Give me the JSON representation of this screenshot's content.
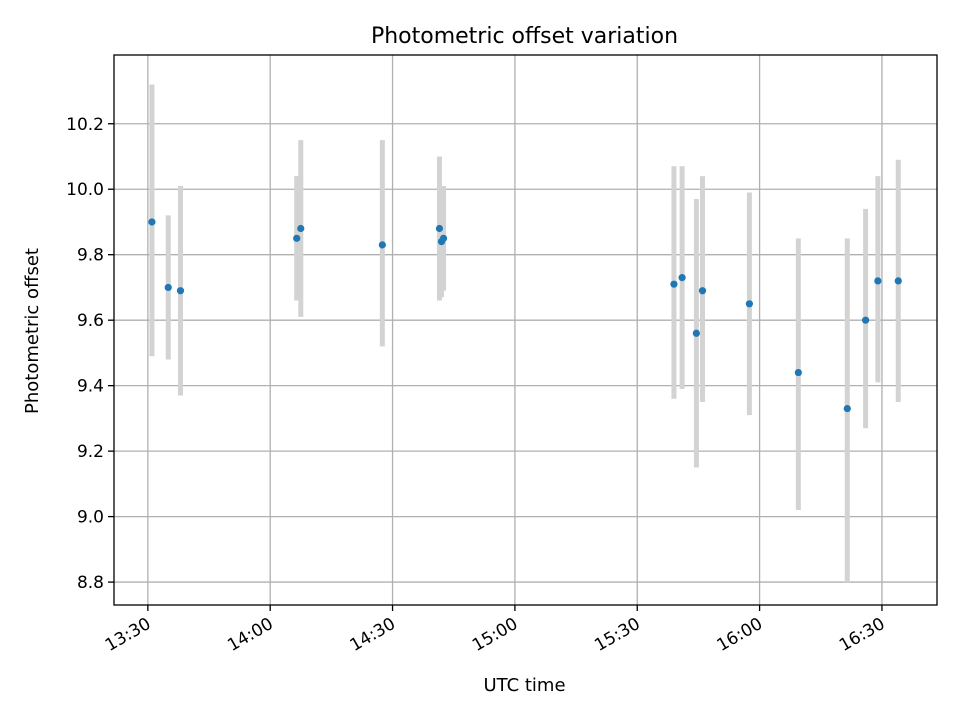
{
  "chart_data": {
    "type": "scatter",
    "title": "Photometric offset variation",
    "xlabel": "UTC time",
    "ylabel": "Photometric offset",
    "x_tick_labels": [
      "13:30",
      "14:00",
      "14:30",
      "15:00",
      "15:30",
      "16:00",
      "16:30"
    ],
    "y_ticks": [
      8.8,
      9.0,
      9.2,
      9.4,
      9.6,
      9.8,
      10.0,
      10.2
    ],
    "xlim": [
      "13:21.7",
      "16:43.5"
    ],
    "ylim": [
      8.73,
      10.41
    ],
    "grid": true,
    "point_color": "#1f77b4",
    "errorbar_color": "#d3d3d3",
    "points": [
      {
        "x": "13:31.0",
        "y": 9.9,
        "ylow": 9.49,
        "yhigh": 10.32
      },
      {
        "x": "13:35.0",
        "y": 9.7,
        "ylow": 9.48,
        "yhigh": 9.92
      },
      {
        "x": "13:38.0",
        "y": 9.69,
        "ylow": 9.37,
        "yhigh": 10.01
      },
      {
        "x": "14:06.5",
        "y": 9.85,
        "ylow": 9.66,
        "yhigh": 10.04
      },
      {
        "x": "14:07.5",
        "y": 9.88,
        "ylow": 9.61,
        "yhigh": 10.15
      },
      {
        "x": "14:27.5",
        "y": 9.83,
        "ylow": 9.52,
        "yhigh": 10.15
      },
      {
        "x": "14:41.5",
        "y": 9.88,
        "ylow": 9.66,
        "yhigh": 10.1
      },
      {
        "x": "14:42.0",
        "y": 9.84,
        "ylow": 9.67,
        "yhigh": 10.01
      },
      {
        "x": "14:42.5",
        "y": 9.85,
        "ylow": 9.69,
        "yhigh": 10.01
      },
      {
        "x": "15:39.0",
        "y": 9.71,
        "ylow": 9.36,
        "yhigh": 10.07
      },
      {
        "x": "15:41.0",
        "y": 9.73,
        "ylow": 9.39,
        "yhigh": 10.07
      },
      {
        "x": "15:44.5",
        "y": 9.56,
        "ylow": 9.15,
        "yhigh": 9.97
      },
      {
        "x": "15:46.0",
        "y": 9.69,
        "ylow": 9.35,
        "yhigh": 10.04
      },
      {
        "x": "15:57.5",
        "y": 9.65,
        "ylow": 9.31,
        "yhigh": 9.99
      },
      {
        "x": "16:09.5",
        "y": 9.44,
        "ylow": 9.02,
        "yhigh": 9.85
      },
      {
        "x": "16:21.5",
        "y": 9.33,
        "ylow": 8.8,
        "yhigh": 9.85
      },
      {
        "x": "16:26.0",
        "y": 9.6,
        "ylow": 9.27,
        "yhigh": 9.94
      },
      {
        "x": "16:29.0",
        "y": 9.72,
        "ylow": 9.41,
        "yhigh": 10.04
      },
      {
        "x": "16:34.0",
        "y": 9.72,
        "ylow": 9.35,
        "yhigh": 10.09
      }
    ]
  }
}
